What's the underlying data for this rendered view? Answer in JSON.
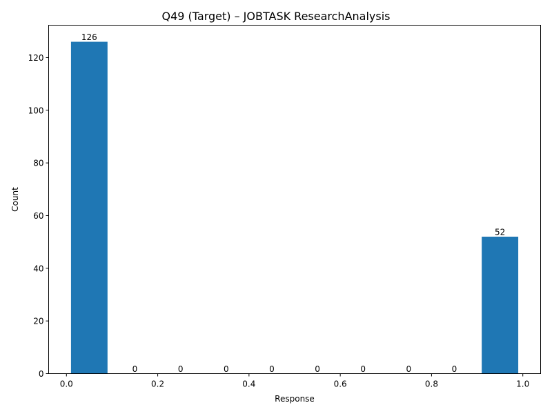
{
  "chart_data": {
    "type": "bar",
    "title": "Q49 (Target) – JOBTASK ResearchAnalysis",
    "xlabel": "Response",
    "ylabel": "Count",
    "bins": [
      {
        "start": 0.01,
        "end": 0.09,
        "value": 126,
        "label": "126"
      },
      {
        "start": 0.11,
        "end": 0.19,
        "value": 0,
        "label": "0"
      },
      {
        "start": 0.21,
        "end": 0.29,
        "value": 0,
        "label": "0"
      },
      {
        "start": 0.31,
        "end": 0.39,
        "value": 0,
        "label": "0"
      },
      {
        "start": 0.41,
        "end": 0.49,
        "value": 0,
        "label": "0"
      },
      {
        "start": 0.51,
        "end": 0.59,
        "value": 0,
        "label": "0"
      },
      {
        "start": 0.61,
        "end": 0.69,
        "value": 0,
        "label": "0"
      },
      {
        "start": 0.71,
        "end": 0.79,
        "value": 0,
        "label": "0"
      },
      {
        "start": 0.81,
        "end": 0.89,
        "value": 0,
        "label": "0"
      },
      {
        "start": 0.91,
        "end": 0.99,
        "value": 52,
        "label": "52"
      }
    ],
    "xlim": [
      -0.039,
      1.039
    ],
    "ylim": [
      0,
      132.3
    ],
    "xticks": [
      {
        "value": 0.0,
        "label": "0.0"
      },
      {
        "value": 0.2,
        "label": "0.2"
      },
      {
        "value": 0.4,
        "label": "0.4"
      },
      {
        "value": 0.6,
        "label": "0.6"
      },
      {
        "value": 0.8,
        "label": "0.8"
      },
      {
        "value": 1.0,
        "label": "1.0"
      }
    ],
    "yticks": [
      {
        "value": 0,
        "label": "0"
      },
      {
        "value": 20,
        "label": "20"
      },
      {
        "value": 40,
        "label": "40"
      },
      {
        "value": 60,
        "label": "60"
      },
      {
        "value": 80,
        "label": "80"
      },
      {
        "value": 100,
        "label": "100"
      },
      {
        "value": 120,
        "label": "120"
      }
    ],
    "bar_color": "#1f77b4",
    "grid": false,
    "legend": "none"
  }
}
